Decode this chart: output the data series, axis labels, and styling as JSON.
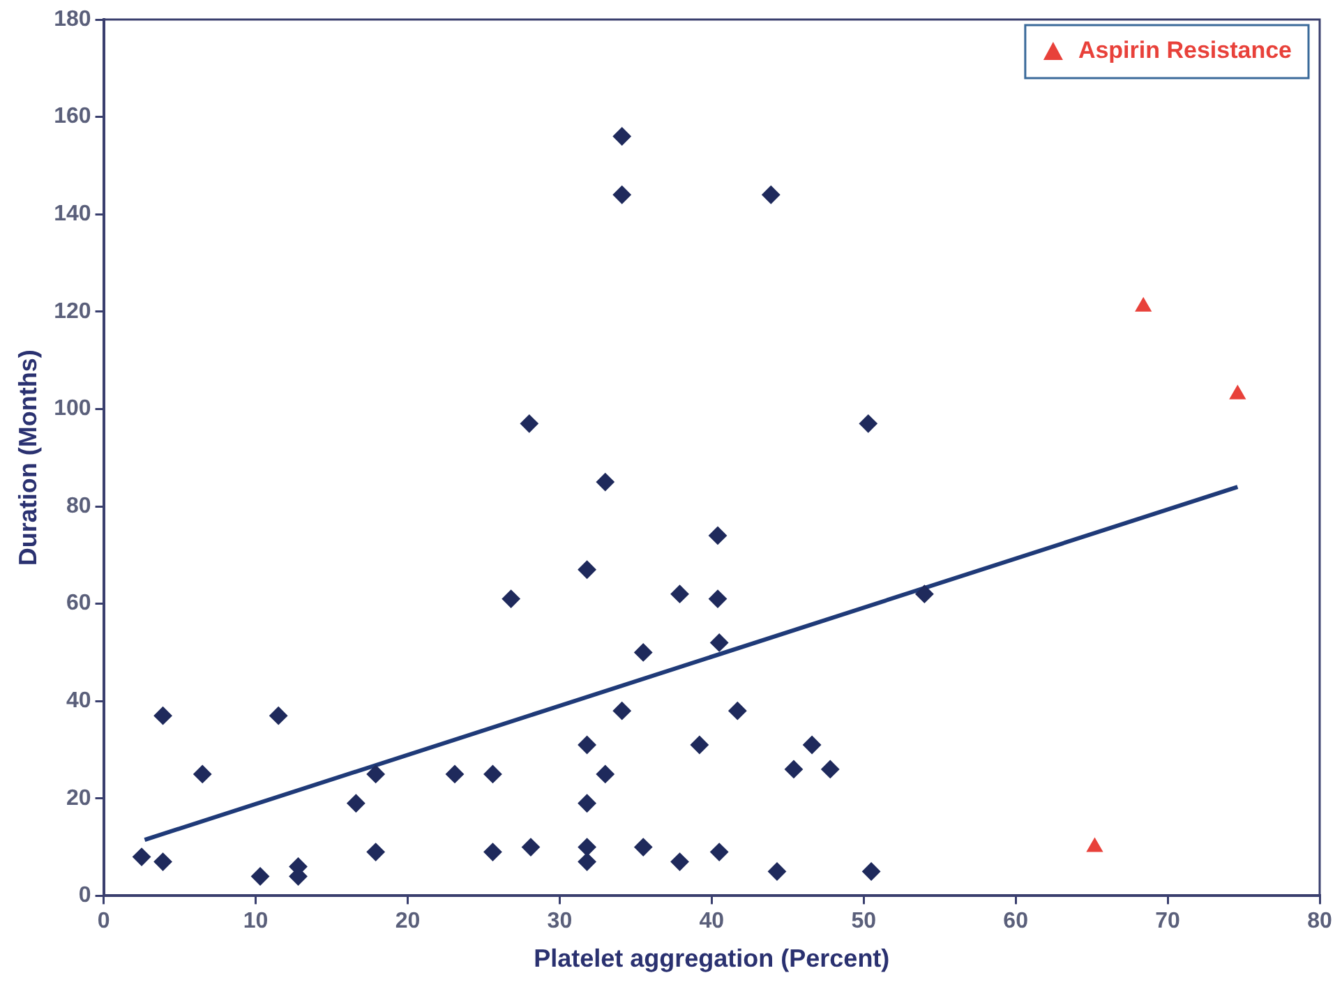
{
  "chart_data": {
    "type": "scatter",
    "xlabel": "Platelet aggregation (Percent)",
    "ylabel": "Duration (Months)",
    "xlim": [
      0,
      80
    ],
    "xticks": [
      0,
      10,
      20,
      30,
      40,
      50,
      60,
      70,
      80
    ],
    "ylim": [
      0,
      180
    ],
    "yticks": [
      0,
      20,
      40,
      60,
      80,
      100,
      120,
      140,
      160,
      180
    ],
    "grid": false,
    "legend": "top right",
    "marker": "diamond",
    "series": [
      {
        "color": "#1f2a5c",
        "x": [
          2.5,
          3.9,
          3.9,
          6.5,
          10.3,
          11.5,
          12.8,
          12.8,
          16.6,
          17.9,
          17.9,
          23.1,
          25.6,
          25.6,
          28.0,
          28.1,
          26.8,
          31.8,
          33.0,
          34.1,
          34.1,
          31.8,
          31.8,
          31.8,
          31.8,
          33.0,
          34.1,
          35.5,
          35.5,
          37.9,
          37.9,
          39.2,
          40.4,
          40.4,
          40.5,
          40.5,
          41.7,
          44.3,
          43.9,
          45.4,
          46.6,
          47.8,
          50.3,
          50.5,
          54.0
        ],
        "values": [
          8,
          7,
          37,
          25,
          4,
          37,
          6,
          4,
          19,
          25,
          9,
          25,
          25,
          9,
          97,
          10,
          61,
          67,
          85,
          156,
          144,
          31,
          19,
          10,
          7,
          25,
          38,
          50,
          10,
          62,
          7,
          31,
          74,
          61,
          52,
          9,
          38,
          5,
          144,
          26,
          31,
          26,
          97,
          5,
          62
        ]
      },
      {
        "name": "Aspirin Resistance",
        "color": "#e8413a",
        "marker": "triangle",
        "x": [
          65.2,
          68.4,
          74.6
        ],
        "values": [
          10,
          121,
          103
        ]
      },
      {
        "type": "line",
        "color": "#1f3a78",
        "marker": "none",
        "x": [
          2.7,
          74.6
        ],
        "values": [
          11.5,
          84
        ]
      }
    ]
  }
}
